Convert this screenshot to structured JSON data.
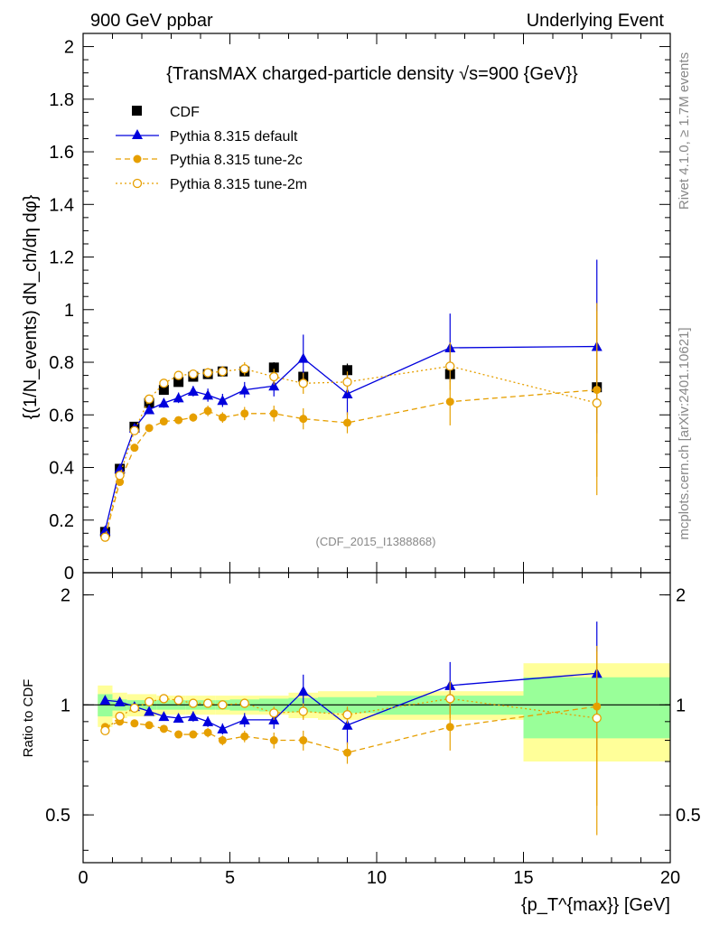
{
  "header": {
    "left": "900 GeV ppbar",
    "right": "Underlying Event"
  },
  "side_labels": {
    "rivet": "Rivet 4.1.0, ≥ 1.7M events",
    "mcplots": "mcplots.cern.ch [arXiv:2401.10621]"
  },
  "watermark": "(CDF_2015_I1388868)",
  "chart_data": [
    {
      "type": "scatter",
      "title": "{TransMAX charged-particle density √s=900 {GeV}}",
      "xlabel": "{p_T^{max}} [GeV]",
      "ylabel": "{(1/N_events) dN_ch/dη dφ}",
      "xlim": [
        0,
        20
      ],
      "ylim": [
        0,
        2.05
      ],
      "yticks": [
        "0",
        "0.2",
        "0.4",
        "0.6",
        "0.8",
        "1",
        "1.2",
        "1.4",
        "1.6",
        "1.8",
        "2"
      ],
      "xticks": [
        "0",
        "5",
        "10",
        "15",
        "20"
      ],
      "legend": {
        "position": "top-left",
        "entries": [
          "CDF",
          "Pythia 8.315 default",
          "Pythia 8.315 tune-2c",
          "Pythia 8.315 tune-2m"
        ]
      },
      "x": [
        0.75,
        1.25,
        1.75,
        2.25,
        2.75,
        3.25,
        3.75,
        4.25,
        4.75,
        5.5,
        6.5,
        7.5,
        9.0,
        12.5,
        17.5
      ],
      "series": [
        {
          "name": "CDF",
          "color": "#000000",
          "marker": "square",
          "values": [
            0.155,
            0.395,
            0.555,
            0.645,
            0.695,
            0.725,
            0.745,
            0.755,
            0.765,
            0.765,
            0.78,
            0.745,
            0.77,
            0.755,
            0.705
          ],
          "errors": [
            0.01,
            0.012,
            0.012,
            0.012,
            0.012,
            0.012,
            0.012,
            0.012,
            0.012,
            0.012,
            0.02,
            0.02,
            0.025,
            0.02,
            0.02
          ]
        },
        {
          "name": "Pythia 8.315 default",
          "color": "#0000dd",
          "marker": "triangle",
          "dash": "solid",
          "values": [
            0.16,
            0.395,
            0.55,
            0.62,
            0.645,
            0.665,
            0.69,
            0.675,
            0.655,
            0.695,
            0.71,
            0.815,
            0.68,
            0.855,
            0.86
          ],
          "errors": [
            0.008,
            0.01,
            0.012,
            0.015,
            0.018,
            0.02,
            0.02,
            0.025,
            0.025,
            0.03,
            0.04,
            0.09,
            0.08,
            0.13,
            0.33
          ]
        },
        {
          "name": "Pythia 8.315 tune-2c",
          "color": "#e69f00",
          "marker": "circle",
          "dash": "6,4",
          "values": [
            0.135,
            0.345,
            0.475,
            0.55,
            0.575,
            0.58,
            0.59,
            0.615,
            0.59,
            0.605,
            0.605,
            0.585,
            0.57,
            0.65,
            0.695
          ],
          "errors": [
            0.006,
            0.008,
            0.01,
            0.012,
            0.012,
            0.014,
            0.016,
            0.02,
            0.02,
            0.025,
            0.03,
            0.04,
            0.04,
            0.09,
            0.33
          ]
        },
        {
          "name": "Pythia 8.315 tune-2m",
          "color": "#e69f00",
          "marker": "open-circle",
          "dash": "2,3",
          "values": [
            0.135,
            0.37,
            0.54,
            0.66,
            0.72,
            0.75,
            0.755,
            0.76,
            0.765,
            0.775,
            0.745,
            0.72,
            0.725,
            0.785,
            0.645
          ],
          "errors": [
            0.006,
            0.008,
            0.01,
            0.012,
            0.012,
            0.014,
            0.016,
            0.018,
            0.02,
            0.025,
            0.03,
            0.04,
            0.04,
            0.09,
            0.35
          ]
        }
      ]
    },
    {
      "type": "scatter",
      "ylabel": "Ratio to CDF",
      "xlim": [
        0,
        20
      ],
      "ylim": [
        0.37,
        2.3
      ],
      "yscale": "log",
      "yticks": [
        "0.5",
        "1",
        "2"
      ],
      "reference": 1,
      "bins": [
        [
          0.5,
          1.0
        ],
        [
          1.0,
          1.5
        ],
        [
          1.5,
          2.0
        ],
        [
          2.0,
          2.5
        ],
        [
          2.5,
          3.0
        ],
        [
          3.0,
          3.5
        ],
        [
          3.5,
          4.0
        ],
        [
          4.0,
          4.5
        ],
        [
          4.5,
          5.0
        ],
        [
          5.0,
          6.0
        ],
        [
          6.0,
          7.0
        ],
        [
          7.0,
          8.0
        ],
        [
          8.0,
          10.0
        ],
        [
          10.0,
          15.0
        ],
        [
          15.0,
          20.0
        ]
      ],
      "band_stat": [
        0.07,
        0.035,
        0.03,
        0.03,
        0.03,
        0.03,
        0.03,
        0.03,
        0.03,
        0.035,
        0.04,
        0.045,
        0.05,
        0.06,
        0.19
      ],
      "band_total": [
        0.13,
        0.08,
        0.07,
        0.07,
        0.06,
        0.06,
        0.06,
        0.06,
        0.06,
        0.06,
        0.06,
        0.08,
        0.09,
        0.09,
        0.3
      ],
      "x": [
        0.75,
        1.25,
        1.75,
        2.25,
        2.75,
        3.25,
        3.75,
        4.25,
        4.75,
        5.5,
        6.5,
        7.5,
        9.0,
        12.5,
        17.5
      ],
      "series": [
        {
          "name": "Pythia 8.315 default",
          "color": "#0000dd",
          "marker": "triangle",
          "dash": "solid",
          "values": [
            1.03,
            1.02,
            0.99,
            0.96,
            0.93,
            0.92,
            0.93,
            0.9,
            0.86,
            0.91,
            0.91,
            1.09,
            0.88,
            1.13,
            1.22
          ],
          "errors": [
            0.02,
            0.02,
            0.02,
            0.02,
            0.02,
            0.02,
            0.03,
            0.03,
            0.03,
            0.04,
            0.05,
            0.12,
            0.1,
            0.18,
            0.47
          ]
        },
        {
          "name": "Pythia 8.315 tune-2c",
          "color": "#e69f00",
          "marker": "circle",
          "dash": "6,4",
          "values": [
            0.87,
            0.9,
            0.89,
            0.88,
            0.86,
            0.83,
            0.83,
            0.84,
            0.8,
            0.82,
            0.8,
            0.8,
            0.74,
            0.87,
            0.99
          ],
          "errors": [
            0.02,
            0.02,
            0.02,
            0.02,
            0.02,
            0.02,
            0.02,
            0.025,
            0.025,
            0.03,
            0.04,
            0.05,
            0.05,
            0.12,
            0.46
          ]
        },
        {
          "name": "Pythia 8.315 tune-2m",
          "color": "#e69f00",
          "marker": "open-circle",
          "dash": "2,3",
          "values": [
            0.85,
            0.93,
            0.98,
            1.02,
            1.04,
            1.03,
            1.01,
            1.01,
            1.0,
            1.01,
            0.95,
            0.96,
            0.94,
            1.04,
            0.92
          ],
          "errors": [
            0.02,
            0.02,
            0.02,
            0.02,
            0.02,
            0.02,
            0.02,
            0.025,
            0.025,
            0.03,
            0.04,
            0.05,
            0.05,
            0.12,
            0.48
          ]
        }
      ]
    }
  ]
}
